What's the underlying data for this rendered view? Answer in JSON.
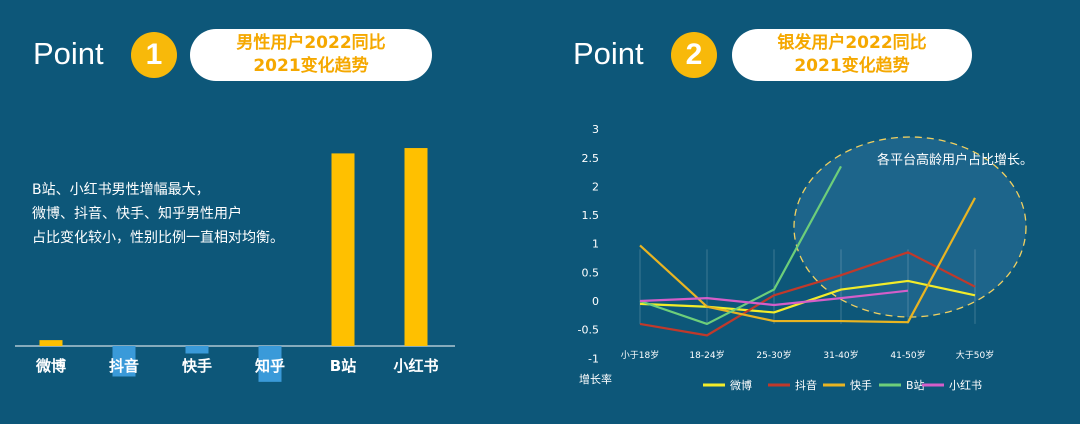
{
  "colors": {
    "background": "#0d5779",
    "accent": "#f8b90a",
    "bar_positive": "#ffc000",
    "bar_negative": "#3a9ad9"
  },
  "left": {
    "point_label": "Point",
    "point_number": "1",
    "pill_line1": "男性用户2022同比",
    "pill_line2": "2021变化趋势",
    "desc_line1": "B站、小红书男性增幅最大，",
    "desc_line2": "微博、抖音、快手、知乎男性用户",
    "desc_line3": "占比变化较小，性别比例一直相对均衡。"
  },
  "right": {
    "point_label": "Point",
    "point_number": "2",
    "pill_line1": "银发用户2022同比",
    "pill_line2": "2021变化趋势",
    "annotation": "各平台高龄用户占比增长。"
  },
  "chart_data": [
    {
      "type": "bar",
      "categories": [
        "微博",
        "抖音",
        "快手",
        "知乎",
        "B站",
        "小红书"
      ],
      "values": [
        0.11,
        -0.57,
        -0.14,
        -0.67,
        3.6,
        3.7
      ],
      "ylim": [
        -1,
        4.2
      ]
    },
    {
      "type": "line",
      "categories": [
        "小于18岁",
        "18-24岁",
        "25-30岁",
        "31-40岁",
        "41-50岁",
        "大于50岁"
      ],
      "ylabel": "增长率",
      "ylim": [
        -1,
        3
      ],
      "yticks": [
        "3",
        "2.5",
        "2",
        "1.5",
        "1",
        "0.5",
        "0",
        "-0.5",
        "-1"
      ],
      "series": [
        {
          "name": "微博",
          "color": "#f2ec2a",
          "values": [
            -0.05,
            -0.1,
            -0.2,
            0.2,
            0.35,
            0.1
          ]
        },
        {
          "name": "抖音",
          "color": "#c0392b",
          "values": [
            -0.4,
            -0.6,
            0.1,
            0.45,
            0.85,
            0.25
          ]
        },
        {
          "name": "快手",
          "color": "#e8b422",
          "values": [
            0.97,
            -0.1,
            -0.35,
            -0.35,
            -0.37,
            1.8
          ]
        },
        {
          "name": "B站",
          "color": "#6dce7a",
          "values": [
            0.0,
            -0.4,
            0.2,
            2.35,
            null,
            null
          ]
        },
        {
          "name": "小红书",
          "color": "#d45ec9",
          "values": [
            0.0,
            0.05,
            -0.07,
            0.05,
            0.18,
            null
          ]
        }
      ],
      "legend_position": "bottom"
    }
  ]
}
